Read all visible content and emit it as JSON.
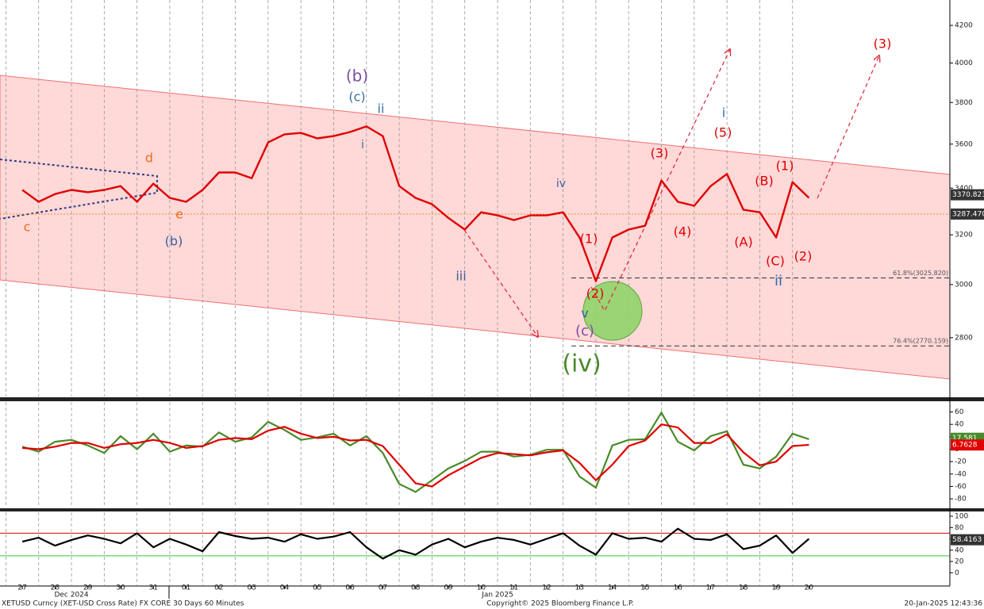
{
  "chart_data": [
    {
      "type": "line",
      "log_scale": true,
      "color": "#e00000",
      "x": [
        0,
        0.5,
        1,
        1.5,
        2,
        2.5,
        3,
        3.5,
        4,
        4.5,
        5,
        5.5,
        6,
        6.5,
        7,
        7.5,
        8,
        8.5,
        9,
        9.5,
        10,
        10.5,
        11,
        11.5,
        12,
        12.5,
        13,
        13.5,
        14,
        14.5,
        15,
        15.5,
        16,
        16.5,
        17,
        17.5,
        18,
        18.5,
        19,
        19.5,
        20,
        20.5,
        21,
        21.5,
        22,
        22.5,
        23,
        23.5,
        24
      ],
      "values": [
        3392,
        3340,
        3374,
        3392,
        3382,
        3392,
        3409,
        3340,
        3420,
        3357,
        3340,
        3392,
        3470,
        3470,
        3444,
        3608,
        3646,
        3653,
        3627,
        3638,
        3657,
        3684,
        3638,
        3409,
        3357,
        3330,
        3271,
        3222,
        3295,
        3282,
        3262,
        3282,
        3282,
        3295,
        3189,
        3013,
        3189,
        3222,
        3238,
        3434,
        3340,
        3323,
        3409,
        3463,
        3306,
        3295,
        3189,
        3427,
        3357
      ],
      "xlim": [
        -0.68,
        28.3
      ],
      "xticks": [
        {
          "value": 0,
          "label": "27"
        },
        {
          "value": 1,
          "label": "28"
        },
        {
          "value": 2,
          "label": "29"
        },
        {
          "value": 3,
          "label": "30"
        },
        {
          "value": 4,
          "label": "31"
        },
        {
          "value": 5,
          "label": "01"
        },
        {
          "value": 6,
          "label": "02"
        },
        {
          "value": 7,
          "label": "03"
        },
        {
          "value": 8,
          "label": "04"
        },
        {
          "value": 9,
          "label": "05"
        },
        {
          "value": 10,
          "label": "06"
        },
        {
          "value": 11,
          "label": "07"
        },
        {
          "value": 12,
          "label": "08"
        },
        {
          "value": 13,
          "label": "09"
        },
        {
          "value": 14,
          "label": "10"
        },
        {
          "value": 15,
          "label": "11"
        },
        {
          "value": 16,
          "label": "12"
        },
        {
          "value": 17,
          "label": "13"
        },
        {
          "value": 18,
          "label": "14"
        },
        {
          "value": 19,
          "label": "15"
        },
        {
          "value": 20,
          "label": "16"
        },
        {
          "value": 21,
          "label": "17"
        },
        {
          "value": 22,
          "label": "18"
        },
        {
          "value": 23,
          "label": "19"
        },
        {
          "value": 24,
          "label": "20"
        }
      ],
      "months": [
        "Dec 2024",
        "Jan 2025"
      ],
      "ylim": [
        2594,
        4341
      ],
      "yticks": [
        2800,
        3000,
        3200,
        3400,
        3600,
        3800,
        4000,
        4200
      ],
      "price_tags": [
        {
          "value": 3370.823,
          "color": "#333333"
        },
        {
          "value": 3287.47,
          "label": "3287.470",
          "color": "#333333"
        }
      ],
      "levels": [
        {
          "label": "61.8%(3025.820)",
          "value": 3025.82
        },
        {
          "label": "76.4%(2770.159)",
          "value": 2770.159
        }
      ],
      "annotations": [
        {
          "text": "(b)",
          "color": "#7a4f9f"
        },
        {
          "text": "(c)",
          "color": "#3a6f9a"
        },
        {
          "text": "ii",
          "color": "#3a6f9a"
        },
        {
          "text": "i",
          "color": "#3a6f9a"
        },
        {
          "text": "d",
          "color": "#e8701e"
        },
        {
          "text": "e",
          "color": "#e8701e"
        },
        {
          "text": "c",
          "color": "#e8701e"
        },
        {
          "text": "(b)",
          "color": "#3a5f9a"
        },
        {
          "text": "iii",
          "color": "#3a5f9a"
        },
        {
          "text": "iv",
          "color": "#3a5f9a"
        },
        {
          "text": "(1)",
          "color": "#e00000"
        },
        {
          "text": "(2)",
          "color": "#e00000"
        },
        {
          "text": "v",
          "color": "#3a5f9a"
        },
        {
          "text": "(c)",
          "color": "#7a4f9f"
        },
        {
          "text": "(iv)",
          "color": "#4a8a2a"
        },
        {
          "text": "(3)",
          "color": "#e00000"
        },
        {
          "text": "(4)",
          "color": "#e00000"
        },
        {
          "text": "i",
          "color": "#2a6fb0"
        },
        {
          "text": "(5)",
          "color": "#e00000"
        },
        {
          "text": "(B)",
          "color": "#e00000"
        },
        {
          "text": "(1)",
          "color": "#e00000"
        },
        {
          "text": "(A)",
          "color": "#e00000"
        },
        {
          "text": "(C)",
          "color": "#e00000"
        },
        {
          "text": "(2)",
          "color": "#e00000"
        },
        {
          "text": "ii",
          "color": "#2a6fb0"
        },
        {
          "text": "(3)",
          "color": "#e00000"
        }
      ]
    },
    {
      "type": "line",
      "series": [
        {
          "color": "#4a8a2a",
          "values": [
            4,
            -4,
            12,
            15,
            6,
            -6,
            21,
            0,
            25,
            -4,
            6,
            4,
            27,
            12,
            19,
            44,
            31,
            15,
            19,
            25,
            6,
            21,
            -6,
            -56,
            -69,
            -50,
            -31,
            -19,
            -4,
            -4,
            -12,
            -9,
            -1,
            -1,
            -44,
            -62,
            6,
            15,
            16,
            59,
            12,
            -2,
            21,
            29,
            -25,
            -31,
            -12,
            25,
            16
          ]
        },
        {
          "color": "#e00000",
          "values": [
            2,
            0,
            4,
            10,
            10,
            2,
            8,
            10,
            15,
            10,
            2,
            5,
            15,
            18,
            16,
            30,
            36,
            25,
            18,
            20,
            14,
            15,
            5,
            -25,
            -55,
            -60,
            -42,
            -28,
            -14,
            -6,
            -8,
            -10,
            -5,
            -2,
            -22,
            -50,
            -25,
            5,
            14,
            40,
            35,
            10,
            10,
            24,
            -5,
            -26,
            -20,
            5,
            7
          ]
        }
      ],
      "ylim": [
        -94,
        76
      ],
      "yticks": [
        -80,
        -60,
        -40,
        -20,
        0,
        20,
        40,
        60
      ],
      "tags": [
        {
          "value": 17.581,
          "color": "#4a8a2a"
        },
        {
          "value": 6.7628,
          "color": "#e00000"
        }
      ]
    },
    {
      "type": "line",
      "color": "#000000",
      "values": [
        55,
        62,
        48,
        58,
        66,
        60,
        52,
        70,
        45,
        60,
        50,
        38,
        72,
        65,
        60,
        62,
        55,
        68,
        60,
        64,
        72,
        45,
        25,
        40,
        32,
        50,
        60,
        45,
        55,
        62,
        58,
        50,
        60,
        70,
        48,
        32,
        70,
        60,
        62,
        55,
        78,
        60,
        58,
        68,
        42,
        48,
        66,
        35,
        60
      ],
      "ylim": [
        -22,
        107
      ],
      "yticks": [
        0,
        20,
        40,
        60,
        80,
        100
      ],
      "levels": [
        {
          "value": 70,
          "color": "#e00000"
        },
        {
          "value": 30,
          "color": "#33cc33"
        }
      ],
      "tags": [
        {
          "value": 58.4163,
          "color": "#333333"
        }
      ]
    }
  ],
  "footer": {
    "left": "XETUSD Curncy (XET-USD Cross Rate) FX CORE 30 Days 60 Minutes",
    "center": "Copyright© 2025 Bloomberg Finance L.P.",
    "right": "20-Jan-2025 12:43:36"
  }
}
